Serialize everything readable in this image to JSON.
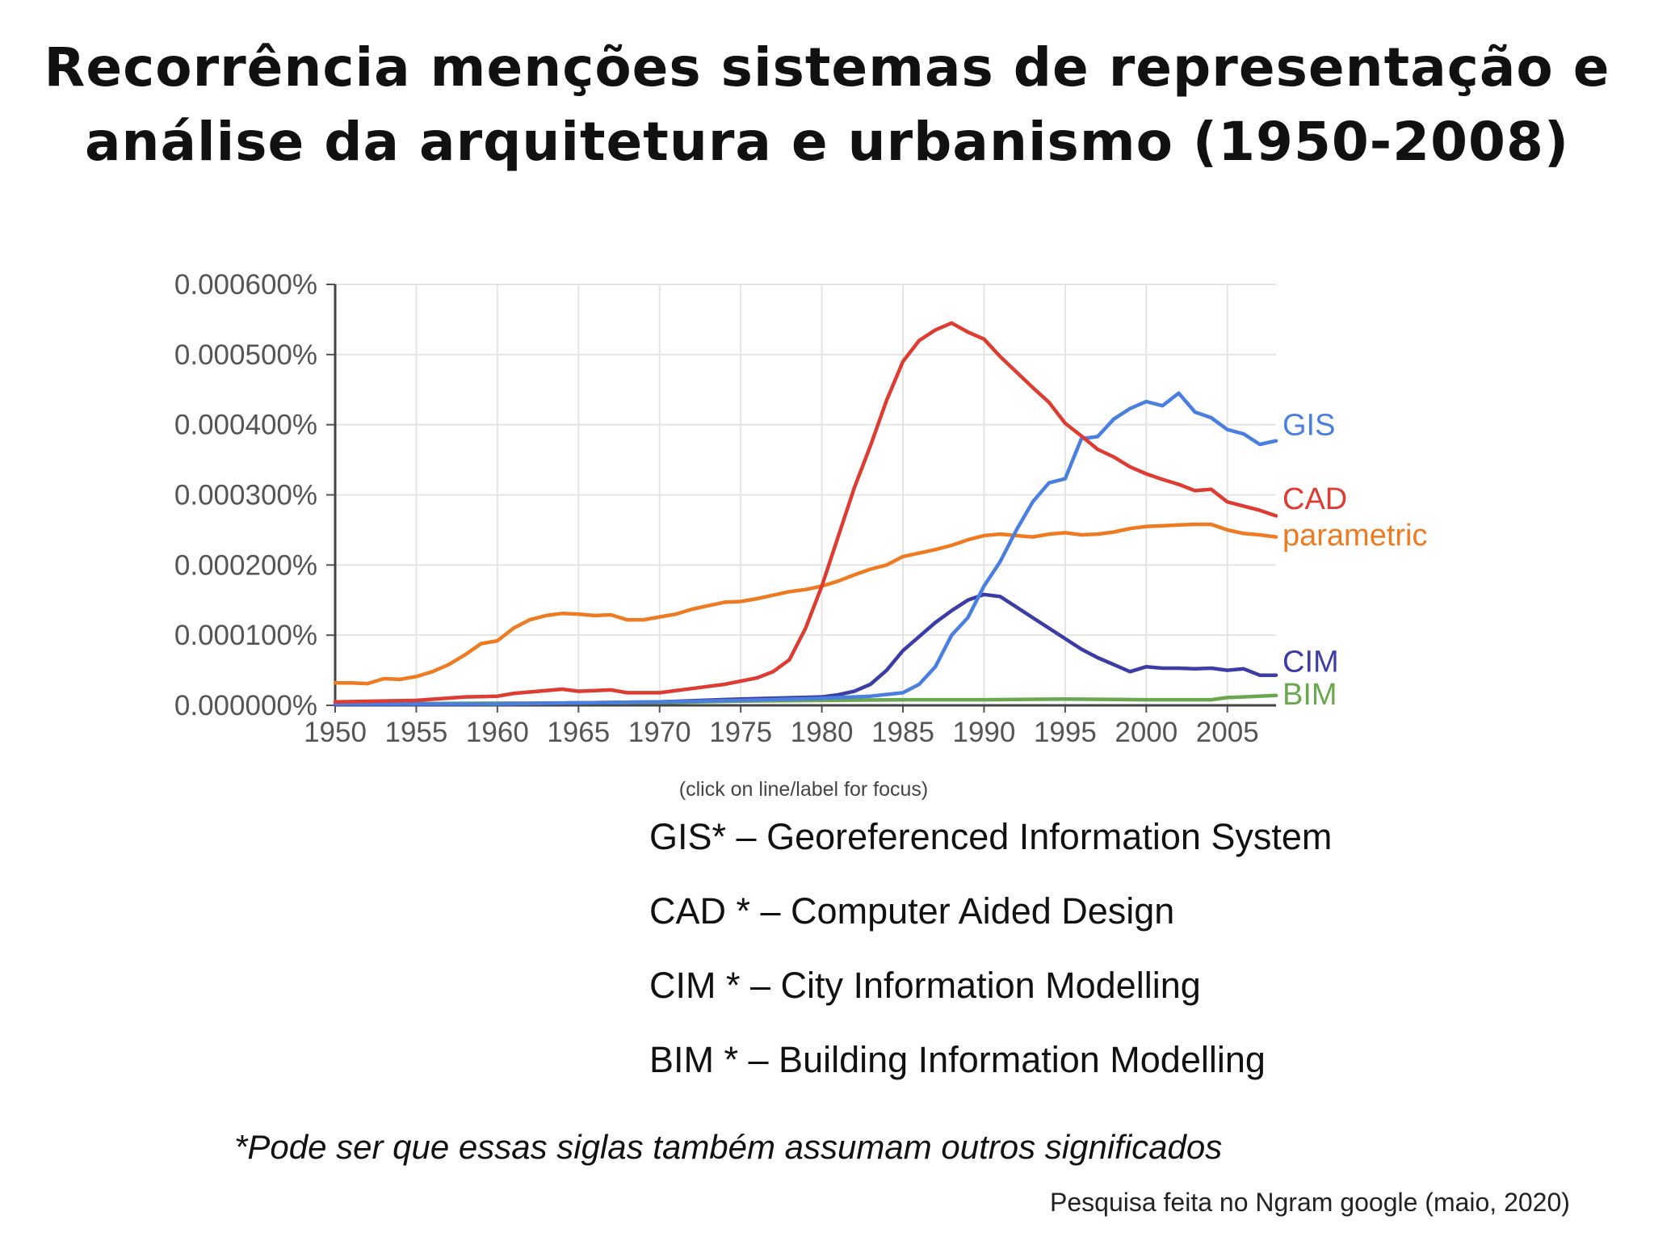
{
  "slide": {
    "title_line1": "Recorrência menções sistemas de representação e",
    "title_line2": "análise da arquitetura e urbanismo (1950-2008)",
    "legend": [
      "GIS* – Georeferenced Information System",
      "CAD * – Computer Aided Design",
      "CIM * – City Information Modelling",
      "BIM * – Building Information Modelling"
    ],
    "note": "*Pode ser que essas siglas também assumam outros significados",
    "source": "Pesquisa feita no Ngram google (maio, 2020)"
  },
  "chart_data": {
    "type": "line",
    "title": "",
    "xlabel": "",
    "ylabel": "",
    "note": "(click on line/label for focus)",
    "xlim": [
      1950,
      2008
    ],
    "ylim": [
      0,
      0.0006
    ],
    "grid": true,
    "legend_placement": "inline-right",
    "x_ticks": [
      1950,
      1955,
      1960,
      1965,
      1970,
      1975,
      1980,
      1985,
      1990,
      1995,
      2000,
      2005
    ],
    "y_ticks": [
      0,
      0.0001,
      0.0002,
      0.0003,
      0.0004,
      0.0005,
      0.0006
    ],
    "y_tick_labels": [
      "0.000000%",
      "0.000100%",
      "0.000200%",
      "0.000300%",
      "0.000400%",
      "0.000500%",
      "0.000600%"
    ],
    "series": [
      {
        "name": "GIS",
        "color": "#4a7fe0",
        "points": [
          [
            1950,
            2e-06
          ],
          [
            1960,
            2e-06
          ],
          [
            1970,
            5e-06
          ],
          [
            1975,
            7e-06
          ],
          [
            1980,
            1e-05
          ],
          [
            1983,
            1.3e-05
          ],
          [
            1985,
            1.8e-05
          ],
          [
            1986,
            3e-05
          ],
          [
            1987,
            5.5e-05
          ],
          [
            1988,
            0.0001
          ],
          [
            1989,
            0.000125
          ],
          [
            1990,
            0.00017
          ],
          [
            1991,
            0.000205
          ],
          [
            1992,
            0.00025
          ],
          [
            1993,
            0.00029
          ],
          [
            1994,
            0.000317
          ],
          [
            1995,
            0.000323
          ],
          [
            1996,
            0.00038
          ],
          [
            1997,
            0.000383
          ],
          [
            1998,
            0.000408
          ],
          [
            1999,
            0.000423
          ],
          [
            2000,
            0.000433
          ],
          [
            2001,
            0.000427
          ],
          [
            2002,
            0.000445
          ],
          [
            2003,
            0.000418
          ],
          [
            2004,
            0.00041
          ],
          [
            2005,
            0.000393
          ],
          [
            2006,
            0.000387
          ],
          [
            2007,
            0.000372
          ],
          [
            2008,
            0.000377
          ]
        ]
      },
      {
        "name": "CAD",
        "color": "#dc3c32",
        "points": [
          [
            1950,
            5e-06
          ],
          [
            1955,
            7e-06
          ],
          [
            1958,
            1.2e-05
          ],
          [
            1960,
            1.3e-05
          ],
          [
            1961,
            1.7e-05
          ],
          [
            1963,
            2.1e-05
          ],
          [
            1964,
            2.3e-05
          ],
          [
            1965,
            2e-05
          ],
          [
            1967,
            2.2e-05
          ],
          [
            1968,
            1.8e-05
          ],
          [
            1970,
            1.8e-05
          ],
          [
            1972,
            2.4e-05
          ],
          [
            1974,
            3e-05
          ],
          [
            1976,
            3.9e-05
          ],
          [
            1977,
            4.8e-05
          ],
          [
            1978,
            6.5e-05
          ],
          [
            1979,
            0.00011
          ],
          [
            1980,
            0.00017
          ],
          [
            1981,
            0.00024
          ],
          [
            1982,
            0.00031
          ],
          [
            1983,
            0.00037
          ],
          [
            1984,
            0.000435
          ],
          [
            1985,
            0.00049
          ],
          [
            1986,
            0.00052
          ],
          [
            1987,
            0.000535
          ],
          [
            1988,
            0.000545
          ],
          [
            1989,
            0.000532
          ],
          [
            1990,
            0.000522
          ],
          [
            1991,
            0.000497
          ],
          [
            1992,
            0.000475
          ],
          [
            1993,
            0.000453
          ],
          [
            1994,
            0.000432
          ],
          [
            1995,
            0.000402
          ],
          [
            1996,
            0.000384
          ],
          [
            1997,
            0.000365
          ],
          [
            1998,
            0.000354
          ],
          [
            1999,
            0.00034
          ],
          [
            2000,
            0.00033
          ],
          [
            2001,
            0.000322
          ],
          [
            2002,
            0.000315
          ],
          [
            2003,
            0.000306
          ],
          [
            2004,
            0.000308
          ],
          [
            2005,
            0.00029
          ],
          [
            2006,
            0.000284
          ],
          [
            2007,
            0.000278
          ],
          [
            2008,
            0.00027
          ]
        ]
      },
      {
        "name": "parametric",
        "color": "#ee7b22",
        "points": [
          [
            1950,
            3.2e-05
          ],
          [
            1951,
            3.2e-05
          ],
          [
            1952,
            3.1e-05
          ],
          [
            1953,
            3.8e-05
          ],
          [
            1954,
            3.7e-05
          ],
          [
            1955,
            4.1e-05
          ],
          [
            1956,
            4.8e-05
          ],
          [
            1957,
            5.8e-05
          ],
          [
            1958,
            7.2e-05
          ],
          [
            1959,
            8.8e-05
          ],
          [
            1960,
            9.2e-05
          ],
          [
            1961,
            0.00011
          ],
          [
            1962,
            0.000122
          ],
          [
            1963,
            0.000128
          ],
          [
            1964,
            0.000131
          ],
          [
            1965,
            0.00013
          ],
          [
            1966,
            0.000128
          ],
          [
            1967,
            0.000129
          ],
          [
            1968,
            0.000122
          ],
          [
            1969,
            0.000122
          ],
          [
            1970,
            0.000126
          ],
          [
            1971,
            0.00013
          ],
          [
            1972,
            0.000137
          ],
          [
            1973,
            0.000142
          ],
          [
            1974,
            0.000147
          ],
          [
            1975,
            0.000148
          ],
          [
            1976,
            0.000152
          ],
          [
            1977,
            0.000157
          ],
          [
            1978,
            0.000162
          ],
          [
            1979,
            0.000165
          ],
          [
            1980,
            0.00017
          ],
          [
            1981,
            0.000177
          ],
          [
            1982,
            0.000186
          ],
          [
            1983,
            0.000194
          ],
          [
            1984,
            0.0002
          ],
          [
            1985,
            0.000212
          ],
          [
            1986,
            0.000217
          ],
          [
            1987,
            0.000222
          ],
          [
            1988,
            0.000228
          ],
          [
            1989,
            0.000236
          ],
          [
            1990,
            0.000242
          ],
          [
            1991,
            0.000244
          ],
          [
            1992,
            0.000242
          ],
          [
            1993,
            0.00024
          ],
          [
            1994,
            0.000244
          ],
          [
            1995,
            0.000246
          ],
          [
            1996,
            0.000243
          ],
          [
            1997,
            0.000244
          ],
          [
            1998,
            0.000247
          ],
          [
            1999,
            0.000252
          ],
          [
            2000,
            0.000255
          ],
          [
            2001,
            0.000256
          ],
          [
            2002,
            0.000257
          ],
          [
            2003,
            0.000258
          ],
          [
            2004,
            0.000258
          ],
          [
            2005,
            0.00025
          ],
          [
            2006,
            0.000245
          ],
          [
            2007,
            0.000243
          ],
          [
            2008,
            0.00024
          ]
        ]
      },
      {
        "name": "CIM",
        "color": "#3c3ca5",
        "points": [
          [
            1950,
            1e-06
          ],
          [
            1960,
            2e-06
          ],
          [
            1970,
            5e-06
          ],
          [
            1975,
            9e-06
          ],
          [
            1980,
            1.2e-05
          ],
          [
            1981,
            1.5e-05
          ],
          [
            1982,
            2e-05
          ],
          [
            1983,
            3e-05
          ],
          [
            1984,
            5e-05
          ],
          [
            1985,
            7.8e-05
          ],
          [
            1986,
            9.8e-05
          ],
          [
            1987,
            0.000118
          ],
          [
            1988,
            0.000135
          ],
          [
            1989,
            0.00015
          ],
          [
            1990,
            0.000158
          ],
          [
            1991,
            0.000155
          ],
          [
            1992,
            0.00014
          ],
          [
            1993,
            0.000125
          ],
          [
            1994,
            0.00011
          ],
          [
            1995,
            9.5e-05
          ],
          [
            1996,
            8e-05
          ],
          [
            1997,
            6.8e-05
          ],
          [
            1998,
            5.8e-05
          ],
          [
            1999,
            4.8e-05
          ],
          [
            2000,
            5.5e-05
          ],
          [
            2001,
            5.3e-05
          ],
          [
            2002,
            5.3e-05
          ],
          [
            2003,
            5.2e-05
          ],
          [
            2004,
            5.3e-05
          ],
          [
            2005,
            5e-05
          ],
          [
            2006,
            5.2e-05
          ],
          [
            2007,
            4.3e-05
          ],
          [
            2008,
            4.3e-05
          ]
        ]
      },
      {
        "name": "BIM",
        "color": "#6aa84f",
        "points": [
          [
            1950,
            2e-06
          ],
          [
            1960,
            3e-06
          ],
          [
            1970,
            4e-06
          ],
          [
            1975,
            6e-06
          ],
          [
            1980,
            7e-06
          ],
          [
            1985,
            8e-06
          ],
          [
            1990,
            8e-06
          ],
          [
            1995,
            9e-06
          ],
          [
            2000,
            8e-06
          ],
          [
            2004,
            8e-06
          ],
          [
            2005,
            1.1e-05
          ],
          [
            2008,
            1.4e-05
          ]
        ]
      }
    ]
  }
}
